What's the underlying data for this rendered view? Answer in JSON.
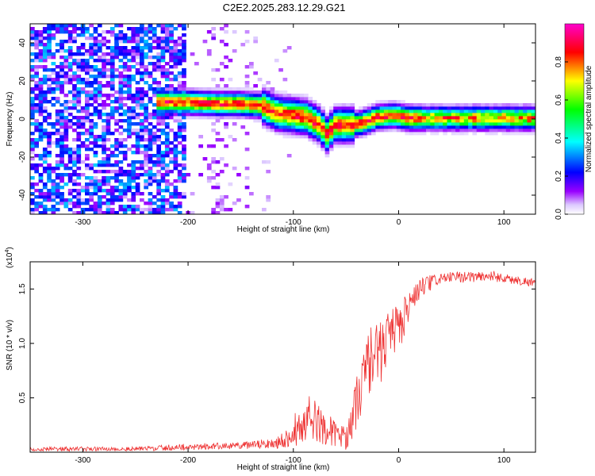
{
  "title": "C2E2.2025.283.12.29.G21",
  "chart_data": [
    {
      "type": "heatmap",
      "xlabel": "Height of straight line (km)",
      "ylabel": "Frequency (Hz)",
      "xlim": [
        -350,
        130
      ],
      "ylim": [
        -50,
        50
      ],
      "xticks": [
        -300,
        -200,
        -100,
        0,
        100
      ],
      "yticks": [
        -40,
        -20,
        0,
        20,
        40
      ],
      "colorbar": {
        "label": "Normalized spectral amplitude",
        "range": [
          0,
          1
        ],
        "ticks": [
          0.0,
          0.2,
          0.4,
          0.6,
          0.8
        ],
        "colors": [
          "#ffffff",
          "#9900ff",
          "#0000ff",
          "#00ffff",
          "#00ff00",
          "#ffff00",
          "#ff0000",
          "#ff00cc"
        ]
      },
      "ridge": [
        {
          "x": -225,
          "f": 9
        },
        {
          "x": -205,
          "f": 9
        },
        {
          "x": -190,
          "f": 8.5
        },
        {
          "x": -170,
          "f": 8
        },
        {
          "x": -150,
          "f": 8
        },
        {
          "x": -130,
          "f": 7
        },
        {
          "x": -115,
          "f": 3
        },
        {
          "x": -100,
          "f": 2
        },
        {
          "x": -88,
          "f": 1
        },
        {
          "x": -75,
          "f": -3
        },
        {
          "x": -68,
          "f": -8
        },
        {
          "x": -60,
          "f": -3
        },
        {
          "x": -45,
          "f": -3
        },
        {
          "x": -35,
          "f": -2
        },
        {
          "x": -20,
          "f": 1
        },
        {
          "x": -5,
          "f": 2
        },
        {
          "x": 10,
          "f": 0.5
        },
        {
          "x": 40,
          "f": 0.5
        },
        {
          "x": 80,
          "f": 0.5
        },
        {
          "x": 130,
          "f": 0.5
        }
      ]
    },
    {
      "type": "line",
      "xlabel": "Height of straight line (km)",
      "ylabel": "SNR (10 * v/v)",
      "multiplier": "(x10",
      "multiplier_exp": "4",
      "multiplier_close": ")",
      "xlim": [
        -350,
        130
      ],
      "ylim": [
        0,
        1.75
      ],
      "xticks": [
        -300,
        -200,
        -100,
        0,
        100
      ],
      "yticks": [
        0.5,
        1.0,
        1.5
      ],
      "line_color": "#ee3333",
      "envelope": [
        {
          "x": -350,
          "base": 0.03,
          "noise": 0.02
        },
        {
          "x": -250,
          "base": 0.03,
          "noise": 0.02
        },
        {
          "x": -200,
          "base": 0.05,
          "noise": 0.03
        },
        {
          "x": -150,
          "base": 0.06,
          "noise": 0.03
        },
        {
          "x": -120,
          "base": 0.08,
          "noise": 0.05
        },
        {
          "x": -100,
          "base": 0.15,
          "noise": 0.1
        },
        {
          "x": -85,
          "base": 0.32,
          "noise": 0.22
        },
        {
          "x": -70,
          "base": 0.22,
          "noise": 0.15
        },
        {
          "x": -50,
          "base": 0.12,
          "noise": 0.1
        },
        {
          "x": -40,
          "base": 0.45,
          "noise": 0.25
        },
        {
          "x": -30,
          "base": 0.8,
          "noise": 0.3
        },
        {
          "x": -10,
          "base": 1.0,
          "noise": 0.28
        },
        {
          "x": 5,
          "base": 1.25,
          "noise": 0.22
        },
        {
          "x": 20,
          "base": 1.5,
          "noise": 0.1
        },
        {
          "x": 40,
          "base": 1.6,
          "noise": 0.05
        },
        {
          "x": 90,
          "base": 1.62,
          "noise": 0.05
        },
        {
          "x": 110,
          "base": 1.58,
          "noise": 0.04
        },
        {
          "x": 130,
          "base": 1.56,
          "noise": 0.04
        }
      ]
    }
  ]
}
